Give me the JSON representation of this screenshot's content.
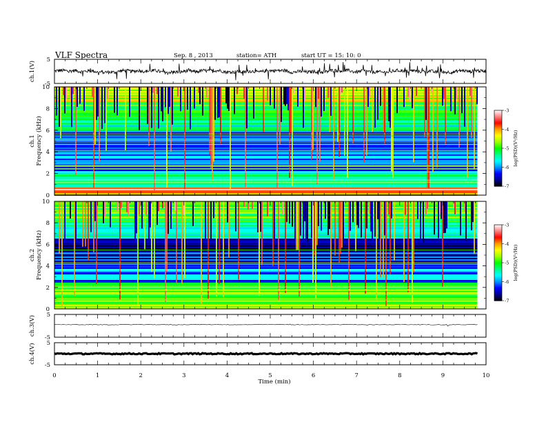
{
  "header": {
    "title": "VLF  Spectra",
    "date": "Sep. 8  , 2013",
    "station": "station= ATH",
    "start": "start  UT  =   15: 10: 0"
  },
  "colorbar": {
    "label": "log(PSD)(V²/Hz)",
    "ticks": [
      "-3",
      "-4",
      "-5",
      "-6",
      "-7"
    ],
    "range": [
      -7,
      -3
    ],
    "colors": [
      "#000000",
      "#00008b",
      "#0000ff",
      "#0096ff",
      "#00ffff",
      "#00ff80",
      "#00ff00",
      "#a0ff00",
      "#ffff00",
      "#ffa000",
      "#ff0000",
      "#ff8080",
      "#ffffff"
    ]
  },
  "chart_data": [
    {
      "type": "line",
      "panel": "ch1_waveform",
      "ylabel": "ch.1(V)",
      "ylim": [
        -5,
        5
      ],
      "yticks": [
        "5",
        "-5"
      ],
      "xlim": [
        0,
        10
      ],
      "baseline": 0.0,
      "color": "#000000"
    },
    {
      "type": "heatmap",
      "panel": "ch1_spectrogram",
      "ylabel": "ch.1\nFrequency  (kHz)",
      "ylim": [
        0,
        10
      ],
      "yticks": [
        "0",
        "2",
        "4",
        "6",
        "8",
        "10"
      ],
      "xlim": [
        0,
        9.8
      ],
      "value_units": "log(PSD)(V²/Hz)",
      "bands_khz": [
        [
          0,
          0.7,
          -3.5
        ],
        [
          0.7,
          2,
          -5.3
        ],
        [
          2,
          4,
          -6
        ],
        [
          4,
          5.8,
          -6.3
        ],
        [
          5.8,
          7,
          -5.5
        ],
        [
          7,
          8.5,
          -5
        ],
        [
          8.5,
          10,
          -4.5
        ]
      ]
    },
    {
      "type": "heatmap",
      "panel": "ch2_spectrogram",
      "ylabel": "ch.2\nFrequency  (kHz)",
      "ylim": [
        0,
        10
      ],
      "yticks": [
        "0",
        "2",
        "4",
        "6",
        "8",
        "10"
      ],
      "xlim": [
        0,
        9.8
      ],
      "value_units": "log(PSD)(V²/Hz)",
      "bands_khz": [
        [
          0,
          1.5,
          -4.8
        ],
        [
          1.5,
          2.5,
          -5.2
        ],
        [
          2.5,
          4,
          -6
        ],
        [
          4,
          5.5,
          -6.4
        ],
        [
          5.5,
          6.5,
          -6.6
        ],
        [
          6.5,
          8,
          -5.5
        ],
        [
          8,
          10,
          -5
        ]
      ]
    },
    {
      "type": "line",
      "panel": "ch3_waveform",
      "ylabel": "ch.3(V)",
      "ylim": [
        -5,
        5
      ],
      "yticks": [
        "5",
        "-5"
      ],
      "xlim": [
        0,
        9.8
      ],
      "baseline": 0.5,
      "color": "#000000"
    },
    {
      "type": "line",
      "panel": "ch4_waveform",
      "ylabel": "ch.4(V)",
      "ylim": [
        -5,
        5
      ],
      "yticks": [
        "5",
        "-5"
      ],
      "xlim": [
        0,
        9.8
      ],
      "baseline": 0.0,
      "color": "#000000"
    }
  ],
  "xaxis": {
    "label": "Time  (min)",
    "xlim": [
      0,
      10
    ],
    "ticks": [
      "0",
      "1",
      "2",
      "3",
      "4",
      "5",
      "6",
      "7",
      "8",
      "9",
      "10"
    ]
  }
}
